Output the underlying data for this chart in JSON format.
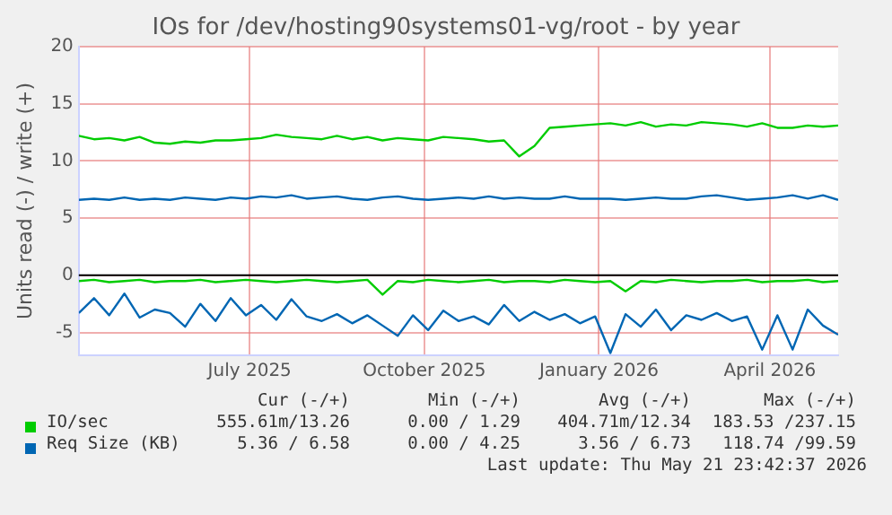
{
  "chart_data": {
    "type": "line",
    "title": "IOs for /dev/hosting90systems01-vg/root - by year",
    "ylabel": "Units read (-) / write (+)",
    "x": [
      "2025-04-16",
      "2025-04-24",
      "2025-05-02",
      "2025-05-10",
      "2025-05-18",
      "2025-05-26",
      "2025-06-03",
      "2025-06-11",
      "2025-06-19",
      "2025-06-27",
      "2025-07-05",
      "2025-07-13",
      "2025-07-21",
      "2025-07-29",
      "2025-08-06",
      "2025-08-14",
      "2025-08-22",
      "2025-08-30",
      "2025-09-07",
      "2025-09-15",
      "2025-09-23",
      "2025-10-01",
      "2025-10-09",
      "2025-10-17",
      "2025-10-25",
      "2025-11-02",
      "2025-11-10",
      "2025-11-18",
      "2025-11-26",
      "2025-12-04",
      "2025-12-12",
      "2025-12-20",
      "2025-12-28",
      "2026-01-05",
      "2026-01-13",
      "2026-01-21",
      "2026-01-29",
      "2026-02-06",
      "2026-02-14",
      "2026-02-22",
      "2026-03-02",
      "2026-03-10",
      "2026-03-18",
      "2026-03-26",
      "2026-04-03",
      "2026-04-11",
      "2026-04-19",
      "2026-04-27",
      "2026-05-05",
      "2026-05-13",
      "2026-05-21"
    ],
    "series": [
      {
        "name": "IO/sec",
        "color": "#00cc00",
        "values": [
          12.2,
          11.9,
          12.0,
          11.8,
          12.1,
          11.6,
          11.5,
          11.7,
          11.6,
          11.8,
          11.8,
          11.9,
          12.0,
          12.3,
          12.1,
          12.0,
          11.9,
          12.2,
          11.9,
          12.1,
          11.8,
          12.0,
          11.9,
          11.8,
          12.1,
          12.0,
          11.9,
          11.7,
          11.8,
          10.4,
          11.3,
          12.9,
          13.0,
          13.1,
          13.2,
          13.3,
          13.1,
          13.4,
          13.0,
          13.2,
          13.1,
          13.4,
          13.3,
          13.2,
          13.0,
          13.3,
          12.9,
          12.9,
          13.1,
          13.0,
          13.1
        ]
      },
      {
        "color": "#00cc00",
        "values": [
          -0.5,
          -0.4,
          -0.6,
          -0.5,
          -0.4,
          -0.6,
          -0.5,
          -0.5,
          -0.4,
          -0.6,
          -0.5,
          -0.4,
          -0.5,
          -0.6,
          -0.5,
          -0.4,
          -0.5,
          -0.6,
          -0.5,
          -0.4,
          -1.7,
          -0.5,
          -0.6,
          -0.4,
          -0.5,
          -0.6,
          -0.5,
          -0.4,
          -0.6,
          -0.5,
          -0.5,
          -0.6,
          -0.4,
          -0.5,
          -0.6,
          -0.5,
          -1.4,
          -0.5,
          -0.6,
          -0.4,
          -0.5,
          -0.6,
          -0.5,
          -0.5,
          -0.4,
          -0.6,
          -0.5,
          -0.5,
          -0.4,
          -0.6,
          -0.5
        ]
      },
      {
        "name": "Req Size (KB)",
        "color": "#0066b3",
        "values": [
          6.6,
          6.7,
          6.6,
          6.8,
          6.6,
          6.7,
          6.6,
          6.8,
          6.7,
          6.6,
          6.8,
          6.7,
          6.9,
          6.8,
          7.0,
          6.7,
          6.8,
          6.9,
          6.7,
          6.6,
          6.8,
          6.9,
          6.7,
          6.6,
          6.7,
          6.8,
          6.7,
          6.9,
          6.7,
          6.8,
          6.7,
          6.7,
          6.9,
          6.7,
          6.7,
          6.7,
          6.6,
          6.7,
          6.8,
          6.7,
          6.7,
          6.9,
          7.0,
          6.8,
          6.6,
          6.7,
          6.8,
          7.0,
          6.7,
          7.0,
          6.6
        ]
      },
      {
        "color": "#0066b3",
        "values": [
          -3.3,
          -2.0,
          -3.5,
          -1.6,
          -3.7,
          -3.0,
          -3.3,
          -4.5,
          -2.5,
          -4.0,
          -2.0,
          -3.5,
          -2.6,
          -3.9,
          -2.1,
          -3.6,
          -4.0,
          -3.4,
          -4.2,
          -3.5,
          -4.4,
          -5.3,
          -3.5,
          -4.8,
          -3.1,
          -4.0,
          -3.6,
          -4.3,
          -2.6,
          -4.0,
          -3.2,
          -3.9,
          -3.4,
          -4.2,
          -3.6,
          -6.8,
          -3.4,
          -4.5,
          -3.0,
          -4.8,
          -3.5,
          -3.9,
          -3.3,
          -4.0,
          -3.6,
          -6.5,
          -3.5,
          -6.5,
          -3.0,
          -4.4,
          -5.2
        ]
      }
    ],
    "xlim": [
      "2025-04-16",
      "2026-05-21"
    ],
    "xticks": [
      {
        "value": "2025-07-15",
        "label": "July 2025"
      },
      {
        "value": "2025-10-15",
        "label": "October 2025"
      },
      {
        "value": "2026-01-15",
        "label": "January 2026"
      },
      {
        "value": "2026-04-15",
        "label": "April 2026"
      }
    ],
    "ylim": [
      -7,
      20
    ],
    "yticks": [
      -5,
      0,
      5,
      10,
      15,
      20
    ],
    "ref_lines": [
      {
        "axis": "y",
        "value": 0,
        "color": "#000000"
      }
    ],
    "grid": true,
    "legend": "bottom",
    "marker": "none",
    "line_style": "solid",
    "annotations": [
      "Cur (-/+)",
      "Min (-/+)",
      "Avg (-/+)",
      "Max (-/+)",
      "555.61m/13.26",
      "0.00 / 1.29",
      "404.71m/12.34",
      "183.53 /237.15",
      "5.36 / 6.58",
      "0.00 / 4.25",
      "3.56 / 6.73",
      "118.74 /99.59",
      "Last update: Thu May 21 23:42:37 2026"
    ]
  }
}
